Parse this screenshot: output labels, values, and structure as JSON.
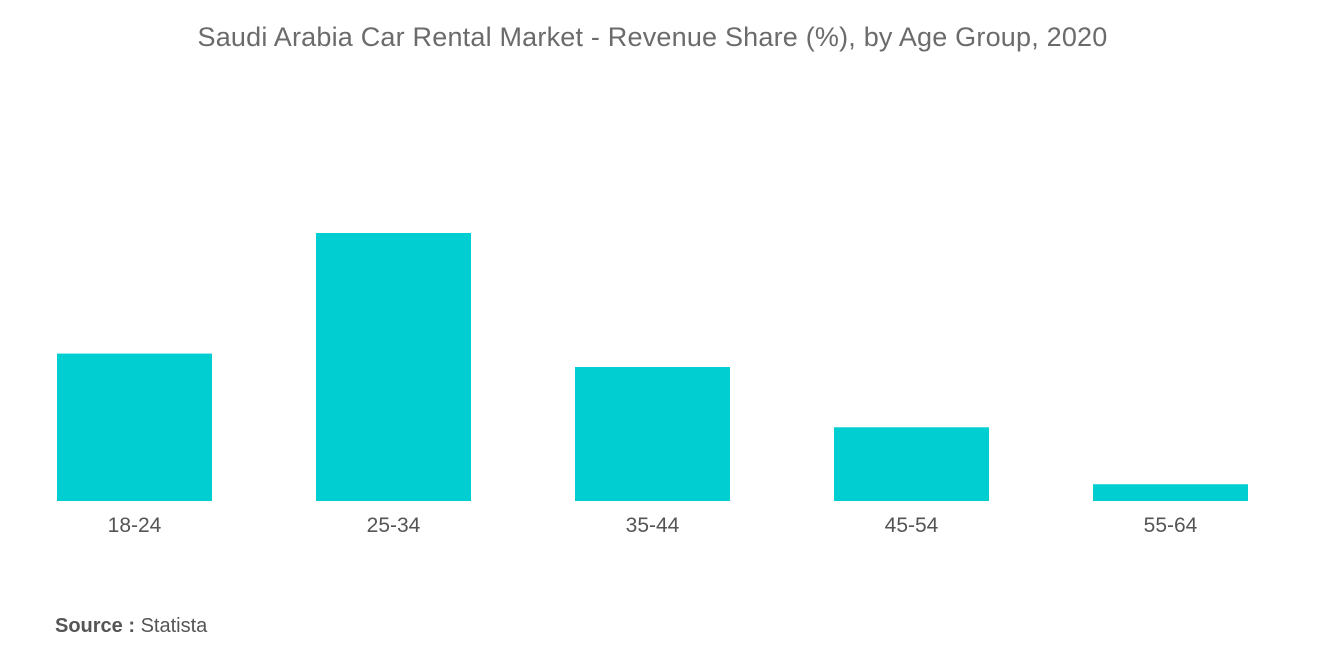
{
  "chart_data": {
    "type": "bar",
    "title": "Saudi Arabia Car Rental Market - Revenue Share (%), by Age Group, 2020",
    "xlabel": "",
    "ylabel": "",
    "categories": [
      "18-24",
      "25-34",
      "35-44",
      "45-54",
      "55-64"
    ],
    "values": [
      22,
      40,
      20,
      11,
      2.5
    ],
    "ylim": [
      0,
      40
    ],
    "grid": false,
    "legend": "none",
    "bar_color": "#00CED1"
  },
  "source": {
    "label": "Source :",
    "value": "Statista"
  }
}
